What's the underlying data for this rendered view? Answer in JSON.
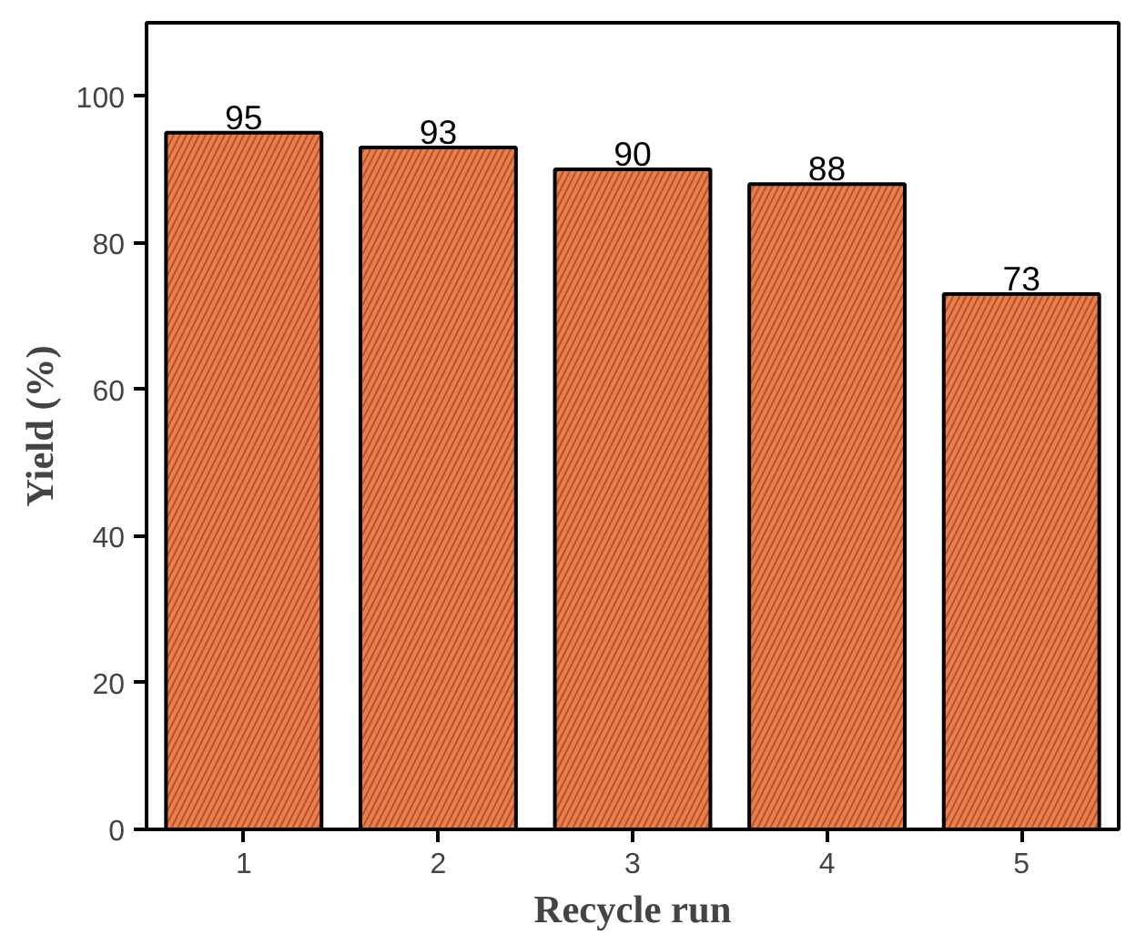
{
  "chart_data": {
    "type": "bar",
    "xlabel": "Recycle run",
    "ylabel": "Yield (%)",
    "categories": [
      "1",
      "2",
      "3",
      "4",
      "5"
    ],
    "values": [
      95,
      93,
      90,
      88,
      73
    ],
    "color": "#ee7d4a",
    "ylim": [
      0,
      110
    ],
    "yticks": [
      0,
      20,
      40,
      60,
      80,
      100
    ],
    "data_labels": true,
    "grid": false
  }
}
